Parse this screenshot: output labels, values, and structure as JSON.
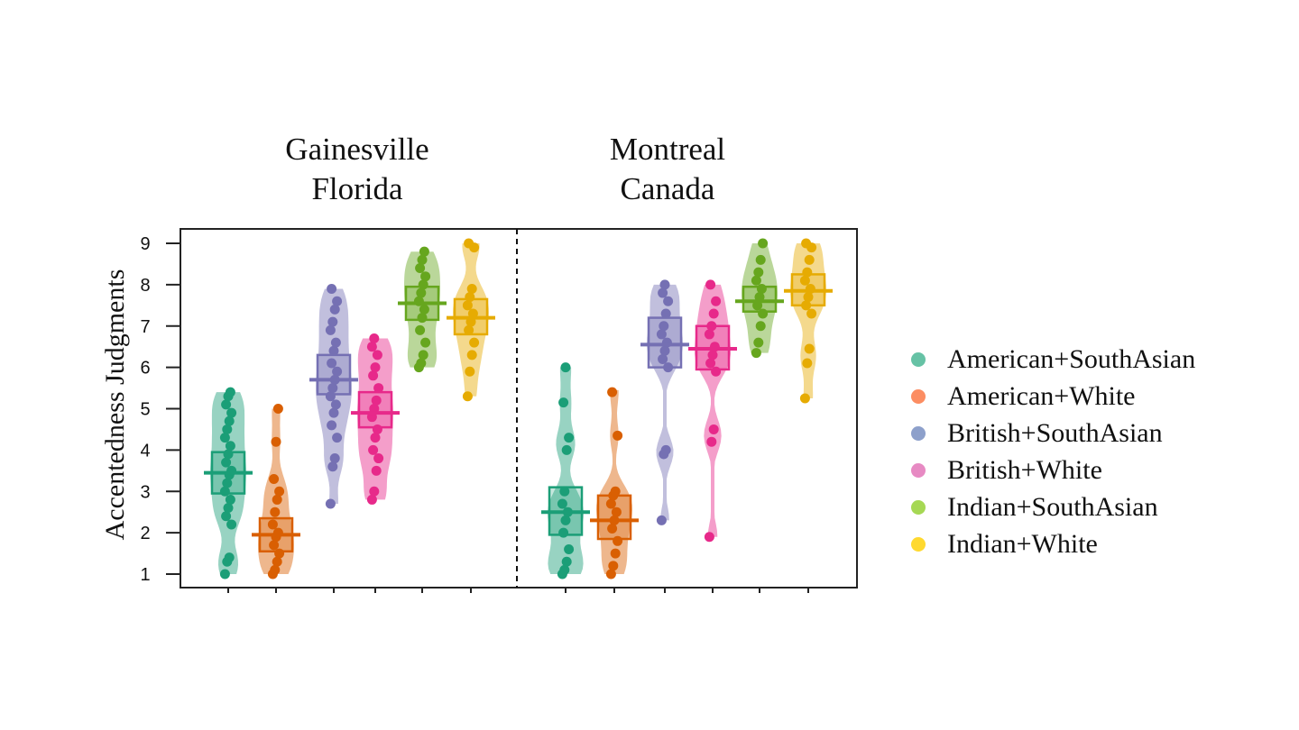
{
  "chart_data": {
    "type": "violin",
    "ylabel": "Accentedness Judgments",
    "xlabel": "",
    "ylim": [
      1,
      9
    ],
    "yticks": [
      1,
      2,
      3,
      4,
      5,
      6,
      7,
      8,
      9
    ],
    "panels": [
      {
        "title": "Gainesville\nFlorida",
        "title_lines": [
          "Gainesville",
          "Florida"
        ]
      },
      {
        "title": "Montreal\nCanada",
        "title_lines": [
          "Montreal",
          "Canada"
        ]
      }
    ],
    "legend_position": "right",
    "series": [
      {
        "name": "American+SouthAsian",
        "color": "#1b9e77",
        "legend_color": "#66c2a5",
        "panels": [
          {
            "median": 3.45,
            "q1": 2.95,
            "q3": 3.95,
            "min": 1.0,
            "max": 5.4,
            "points": [
              1.0,
              1.3,
              1.4,
              2.2,
              2.4,
              2.6,
              2.8,
              3.0,
              3.2,
              3.4,
              3.5,
              3.7,
              3.9,
              4.1,
              4.3,
              4.5,
              4.7,
              4.9,
              5.1,
              5.3,
              5.4
            ]
          },
          {
            "median": 2.5,
            "q1": 1.95,
            "q3": 3.1,
            "min": 1.0,
            "max": 6.0,
            "points": [
              1.0,
              1.1,
              1.3,
              1.6,
              2.0,
              2.3,
              2.5,
              2.7,
              3.0,
              4.0,
              4.3,
              5.15,
              6.0
            ]
          }
        ]
      },
      {
        "name": "American+White",
        "color": "#d95f02",
        "legend_color": "#fc8d62",
        "panels": [
          {
            "median": 1.95,
            "q1": 1.55,
            "q3": 2.35,
            "min": 1.0,
            "max": 5.0,
            "points": [
              1.0,
              1.1,
              1.3,
              1.5,
              1.7,
              1.9,
              2.0,
              2.2,
              2.5,
              2.8,
              3.0,
              3.3,
              4.2,
              5.0
            ]
          },
          {
            "median": 2.3,
            "q1": 1.85,
            "q3": 2.9,
            "min": 1.0,
            "max": 5.45,
            "points": [
              1.0,
              1.2,
              1.5,
              1.8,
              2.1,
              2.3,
              2.5,
              2.7,
              2.9,
              3.0,
              4.35,
              5.4
            ]
          }
        ]
      },
      {
        "name": "British+SouthAsian",
        "color": "#7570b3",
        "legend_color": "#8da0cb",
        "panels": [
          {
            "median": 5.7,
            "q1": 5.35,
            "q3": 6.3,
            "min": 2.7,
            "max": 7.9,
            "points": [
              2.7,
              3.6,
              3.8,
              4.3,
              4.6,
              4.9,
              5.1,
              5.3,
              5.5,
              5.7,
              5.9,
              6.1,
              6.4,
              6.6,
              6.9,
              7.1,
              7.4,
              7.6,
              7.9
            ]
          },
          {
            "median": 6.55,
            "q1": 6.0,
            "q3": 7.2,
            "min": 2.3,
            "max": 8.0,
            "points": [
              2.3,
              3.9,
              4.0,
              6.0,
              6.2,
              6.4,
              6.6,
              6.8,
              7.0,
              7.3,
              7.6,
              7.8,
              8.0
            ]
          }
        ]
      },
      {
        "name": "British+White",
        "color": "#e7298a",
        "legend_color": "#e78ac3",
        "panels": [
          {
            "median": 4.9,
            "q1": 4.55,
            "q3": 5.4,
            "min": 2.8,
            "max": 6.7,
            "points": [
              2.8,
              3.0,
              3.5,
              3.8,
              4.0,
              4.3,
              4.5,
              4.8,
              5.0,
              5.2,
              5.5,
              5.8,
              6.0,
              6.3,
              6.5,
              6.7
            ]
          },
          {
            "median": 6.45,
            "q1": 5.95,
            "q3": 7.0,
            "min": 1.9,
            "max": 8.0,
            "points": [
              1.9,
              4.2,
              4.5,
              5.9,
              6.1,
              6.3,
              6.5,
              6.8,
              7.0,
              7.3,
              7.6,
              8.0
            ]
          }
        ]
      },
      {
        "name": "Indian+SouthAsian",
        "color": "#66a61e",
        "legend_color": "#a6d854",
        "panels": [
          {
            "median": 7.55,
            "q1": 7.15,
            "q3": 7.95,
            "min": 6.0,
            "max": 8.8,
            "points": [
              6.0,
              6.1,
              6.3,
              6.6,
              6.9,
              7.2,
              7.4,
              7.6,
              7.8,
              8.0,
              8.2,
              8.4,
              8.6,
              8.8
            ]
          },
          {
            "median": 7.6,
            "q1": 7.35,
            "q3": 7.95,
            "min": 6.35,
            "max": 9.0,
            "points": [
              6.35,
              6.6,
              7.0,
              7.3,
              7.5,
              7.7,
              7.9,
              8.1,
              8.3,
              8.6,
              9.0
            ]
          }
        ]
      },
      {
        "name": "Indian+White",
        "color": "#e6ab02",
        "legend_color": "#ffd92f",
        "panels": [
          {
            "median": 7.2,
            "q1": 6.8,
            "q3": 7.65,
            "min": 5.3,
            "max": 9.0,
            "points": [
              5.3,
              5.9,
              6.3,
              6.6,
              6.9,
              7.1,
              7.3,
              7.5,
              7.7,
              7.9,
              8.9,
              9.0
            ]
          },
          {
            "median": 7.85,
            "q1": 7.5,
            "q3": 8.25,
            "min": 5.25,
            "max": 9.0,
            "points": [
              5.25,
              6.1,
              6.45,
              7.3,
              7.5,
              7.7,
              7.9,
              8.1,
              8.3,
              8.6,
              8.9,
              9.0
            ]
          }
        ]
      }
    ]
  },
  "legend": {
    "items": [
      {
        "label": "American+SouthAsian",
        "color": "#66c2a5"
      },
      {
        "label": "American+White",
        "color": "#fc8d62"
      },
      {
        "label": "British+SouthAsian",
        "color": "#8da0cb"
      },
      {
        "label": "British+White",
        "color": "#e78ac3"
      },
      {
        "label": "Indian+SouthAsian",
        "color": "#a6d854"
      },
      {
        "label": "Indian+White",
        "color": "#ffd92f"
      }
    ]
  },
  "titles": {
    "left": [
      "Gainesville",
      "Florida"
    ],
    "right": [
      "Montreal",
      "Canada"
    ]
  },
  "axis": {
    "ylabel": "Accentedness Judgments"
  }
}
